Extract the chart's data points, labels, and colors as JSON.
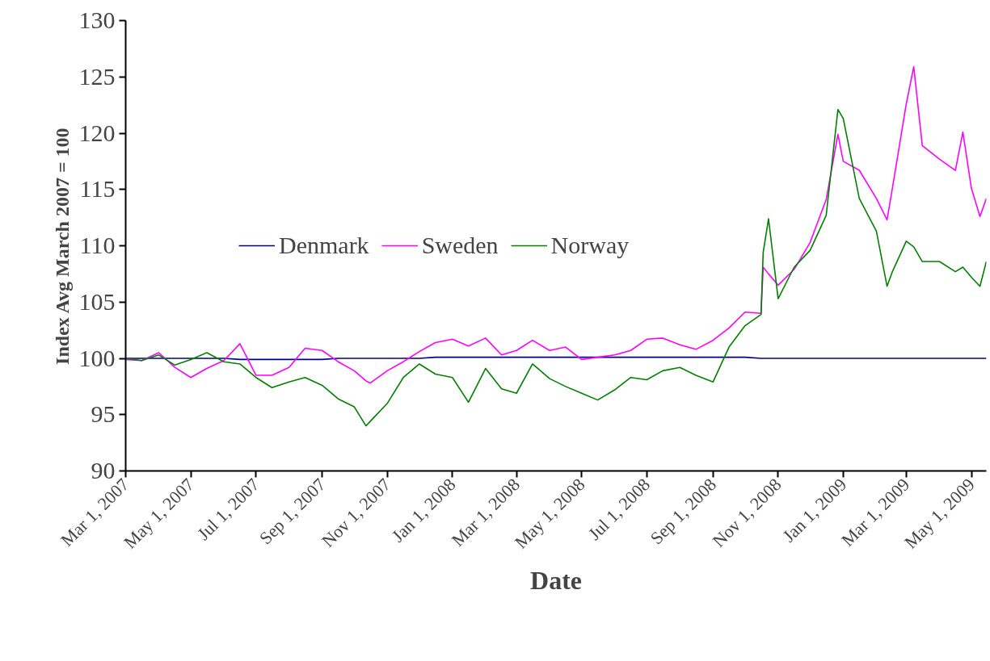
{
  "chart_data": {
    "type": "line",
    "xlabel": "Date",
    "ylabel": "Index Avg March 2007 = 100",
    "x": [
      "2007-03-01",
      "2007-03-16",
      "2007-04-01",
      "2007-04-16",
      "2007-05-01",
      "2007-05-16",
      "2007-06-01",
      "2007-06-16",
      "2007-07-01",
      "2007-07-16",
      "2007-08-01",
      "2007-08-16",
      "2007-09-01",
      "2007-09-16",
      "2007-10-01",
      "2007-10-12",
      "2007-10-16",
      "2007-11-01",
      "2007-11-16",
      "2007-12-01",
      "2007-12-16",
      "2008-01-01",
      "2008-01-16",
      "2008-02-01",
      "2008-02-16",
      "2008-03-01",
      "2008-03-16",
      "2008-04-01",
      "2008-04-16",
      "2008-05-01",
      "2008-05-16",
      "2008-06-01",
      "2008-06-16",
      "2008-07-01",
      "2008-07-16",
      "2008-08-01",
      "2008-08-16",
      "2008-09-01",
      "2008-09-16",
      "2008-10-01",
      "2008-10-16",
      "2008-10-18",
      "2008-10-23",
      "2008-11-01",
      "2008-11-16",
      "2008-12-01",
      "2008-12-16",
      "2008-12-27",
      "2009-01-01",
      "2009-01-16",
      "2009-02-01",
      "2009-02-11",
      "2009-02-16",
      "2009-03-01",
      "2009-03-08",
      "2009-03-16",
      "2009-04-01",
      "2009-04-16",
      "2009-04-23",
      "2009-05-01",
      "2009-05-09",
      "2009-05-15"
    ],
    "series": [
      {
        "name": "Denmark",
        "color": "#000080",
        "values": [
          100.0,
          100.0,
          100.0,
          100.0,
          100.0,
          100.0,
          100.0,
          99.9,
          99.9,
          99.9,
          99.9,
          99.9,
          99.9,
          100.0,
          100.0,
          100.0,
          100.0,
          100.0,
          100.0,
          100.0,
          100.1,
          100.1,
          100.1,
          100.1,
          100.1,
          100.1,
          100.1,
          100.1,
          100.1,
          100.1,
          100.1,
          100.1,
          100.1,
          100.1,
          100.1,
          100.1,
          100.1,
          100.1,
          100.1,
          100.1,
          100.0,
          100.0,
          100.0,
          100.0,
          100.0,
          100.0,
          100.0,
          100.0,
          100.0,
          100.0,
          100.0,
          100.0,
          100.0,
          100.0,
          100.0,
          100.0,
          100.0,
          100.0,
          100.0,
          100.0,
          100.0,
          100.0
        ]
      },
      {
        "name": "Sweden",
        "color": "#ff00ff",
        "values": [
          99.9,
          99.8,
          100.5,
          99.2,
          98.3,
          99.1,
          99.8,
          101.3,
          98.5,
          98.5,
          99.2,
          100.9,
          100.7,
          99.7,
          98.9,
          98.0,
          97.8,
          98.9,
          99.7,
          100.6,
          101.4,
          101.7,
          101.1,
          101.8,
          100.3,
          100.7,
          101.6,
          100.7,
          101.0,
          99.9,
          100.1,
          100.3,
          100.7,
          101.7,
          101.8,
          101.2,
          100.8,
          101.6,
          102.7,
          104.1,
          104.0,
          108.1,
          107.5,
          106.5,
          107.9,
          110.3,
          114.1,
          119.9,
          117.5,
          116.7,
          114.2,
          112.3,
          115.1,
          122.6,
          125.9,
          118.9,
          117.7,
          116.7,
          120.1,
          115.1,
          112.6,
          114.2
        ]
      },
      {
        "name": "Norway",
        "color": "#008000",
        "values": [
          100.0,
          99.8,
          100.3,
          99.4,
          99.9,
          100.5,
          99.7,
          99.5,
          98.3,
          97.4,
          97.9,
          98.3,
          97.6,
          96.4,
          95.7,
          94.0,
          94.4,
          96.0,
          98.3,
          99.5,
          98.6,
          98.3,
          96.1,
          99.1,
          97.3,
          96.9,
          99.5,
          98.2,
          97.5,
          96.9,
          96.3,
          97.2,
          98.3,
          98.1,
          98.9,
          99.2,
          98.5,
          97.9,
          101.0,
          102.9,
          103.9,
          109.4,
          112.4,
          105.3,
          108.1,
          109.6,
          112.7,
          122.1,
          121.3,
          114.2,
          111.3,
          106.4,
          107.7,
          110.4,
          109.9,
          108.6,
          108.6,
          107.7,
          108.1,
          107.2,
          106.4,
          108.6
        ]
      }
    ],
    "xlim": [
      "2007-03-01",
      "2009-05-15"
    ],
    "xticks": [
      {
        "value": "2007-03-01",
        "label": "Mar 1, 2007"
      },
      {
        "value": "2007-05-01",
        "label": "May 1, 2007"
      },
      {
        "value": "2007-07-01",
        "label": "Jul 1, 2007"
      },
      {
        "value": "2007-09-01",
        "label": "Sep 1, 2007"
      },
      {
        "value": "2007-11-01",
        "label": "Nov 1, 2007"
      },
      {
        "value": "2008-01-01",
        "label": "Jan 1, 2008"
      },
      {
        "value": "2008-03-01",
        "label": "Mar 1, 2008"
      },
      {
        "value": "2008-05-01",
        "label": "May 1, 2008"
      },
      {
        "value": "2008-07-01",
        "label": "Jul 1, 2008"
      },
      {
        "value": "2008-09-01",
        "label": "Sep 1, 2008"
      },
      {
        "value": "2008-11-01",
        "label": "Nov 1, 2008"
      },
      {
        "value": "2009-01-01",
        "label": "Jan 1, 2009"
      },
      {
        "value": "2009-03-01",
        "label": "Mar 1, 2009"
      },
      {
        "value": "2009-05-01",
        "label": "May 1, 2009"
      }
    ],
    "ylim": [
      90,
      130
    ],
    "yticks": [
      90,
      95,
      100,
      105,
      110,
      115,
      120,
      125,
      130
    ],
    "grid": false,
    "legend": "left",
    "marker": "none",
    "line_style": "solid"
  }
}
